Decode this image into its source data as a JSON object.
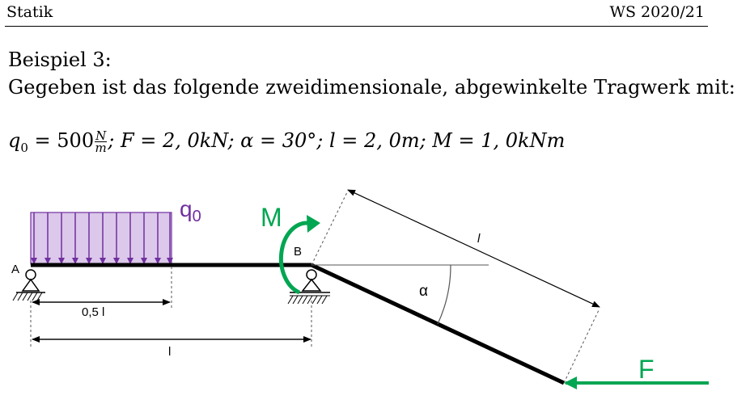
{
  "header": {
    "left": "Statik",
    "right": "WS 2020/21"
  },
  "title": "Beispiel 3:",
  "intro": "Gegeben ist das folgende zweidimensionale, abgewinkelte Tragwerk mit:",
  "formula": {
    "q0_lhs": "q",
    "q0_sub": "0",
    "q0_rhs": " = 500",
    "q0_num": "N",
    "q0_den": "m",
    "rest": "; F = 2, 0kN; α = 30°; l = 2, 0m; M = 1, 0kNm"
  },
  "figure": {
    "label_q0": "q",
    "label_q0_sub": "0",
    "label_M": "M",
    "label_A": "A",
    "label_B": "B",
    "label_alpha": "α",
    "label_half_l": "0,5 l",
    "label_l_bottom": "l",
    "label_l_diag": "l",
    "label_F": "F",
    "colors": {
      "load": "#7030a0",
      "green": "#00a651",
      "beam": "#000000"
    }
  }
}
